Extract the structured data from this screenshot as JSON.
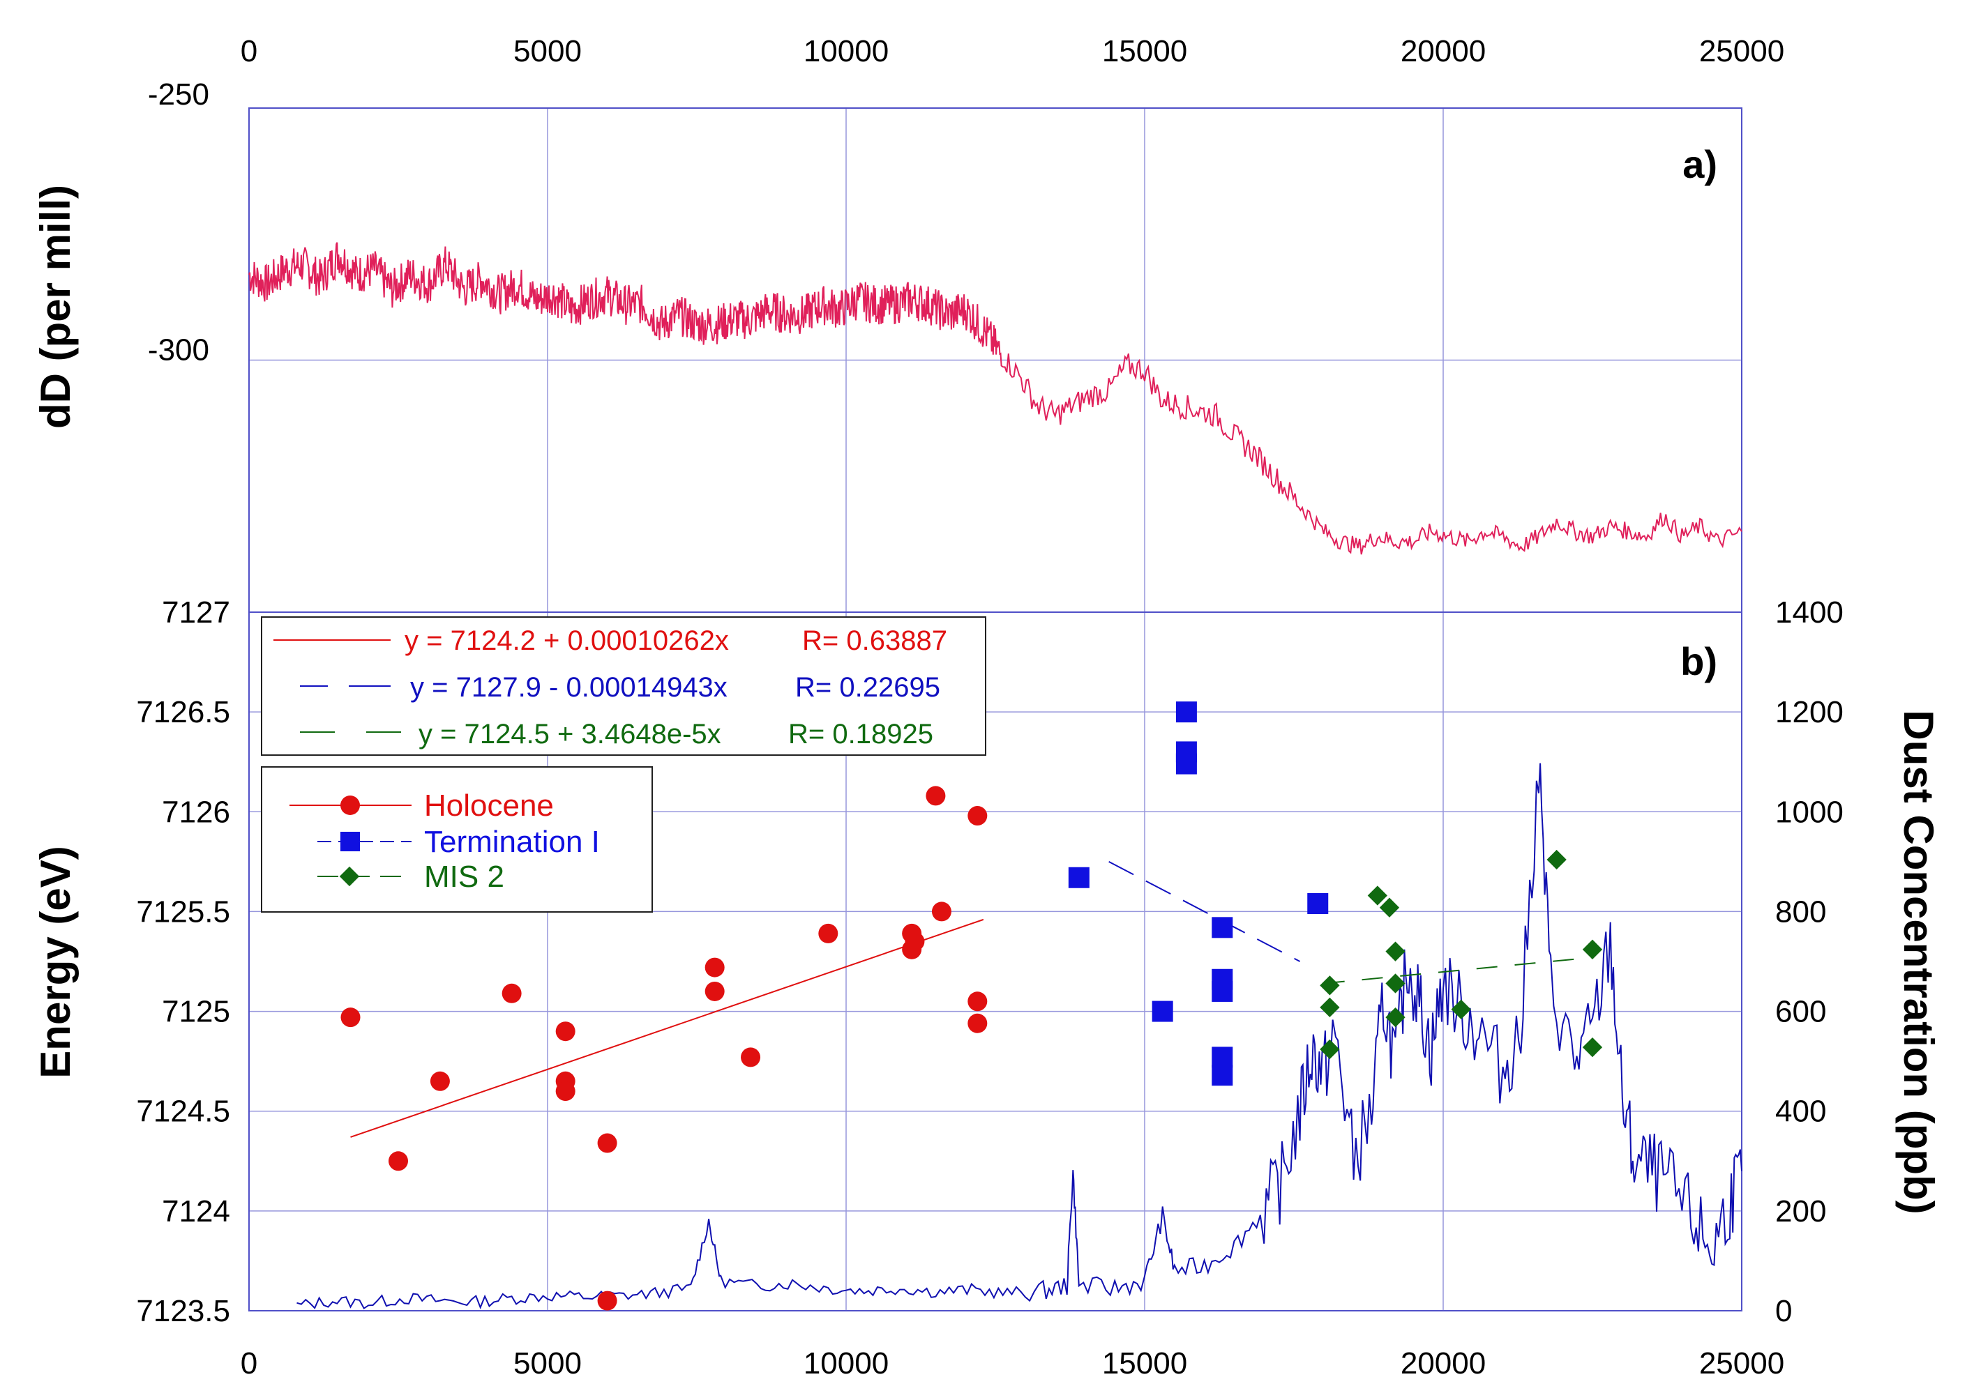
{
  "chart_data": [
    {
      "panel_label": "a)",
      "type": "line",
      "ylabel": "dD (per mill)",
      "xlim": [
        0,
        25000
      ],
      "ylim": [
        -350,
        -250
      ],
      "x_ticks": [
        "0",
        "5000",
        "10000",
        "15000",
        "20000",
        "25000"
      ],
      "y_ticks": [
        "-250",
        "-300"
      ],
      "series": [
        {
          "name": "dD",
          "color": "#e0205a",
          "points": [
            [
              0,
              -283
            ],
            [
              300,
              -285
            ],
            [
              600,
              -282
            ],
            [
              900,
              -281
            ],
            [
              1200,
              -284
            ],
            [
              1500,
              -279
            ],
            [
              1800,
              -283
            ],
            [
              2100,
              -282
            ],
            [
              2400,
              -286
            ],
            [
              2700,
              -283
            ],
            [
              3000,
              -285
            ],
            [
              3300,
              -281
            ],
            [
              3600,
              -286
            ],
            [
              3900,
              -284
            ],
            [
              4200,
              -287
            ],
            [
              4500,
              -285
            ],
            [
              4800,
              -288
            ],
            [
              5100,
              -287
            ],
            [
              5400,
              -290
            ],
            [
              5700,
              -288
            ],
            [
              6000,
              -287
            ],
            [
              6300,
              -289
            ],
            [
              6600,
              -289
            ],
            [
              6900,
              -293
            ],
            [
              7200,
              -291
            ],
            [
              7500,
              -293
            ],
            [
              7800,
              -293
            ],
            [
              8100,
              -292
            ],
            [
              8400,
              -292
            ],
            [
              8700,
              -290
            ],
            [
              9000,
              -291
            ],
            [
              9300,
              -291
            ],
            [
              9600,
              -289
            ],
            [
              9900,
              -290
            ],
            [
              10200,
              -288
            ],
            [
              10500,
              -289
            ],
            [
              10800,
              -289
            ],
            [
              11100,
              -288
            ],
            [
              11400,
              -289
            ],
            [
              11700,
              -291
            ],
            [
              12000,
              -290
            ],
            [
              12300,
              -294
            ],
            [
              12600,
              -299
            ],
            [
              12900,
              -303
            ],
            [
              13200,
              -309
            ],
            [
              13500,
              -311
            ],
            [
              13800,
              -309
            ],
            [
              14100,
              -307
            ],
            [
              14400,
              -306
            ],
            [
              14700,
              -301
            ],
            [
              15000,
              -302
            ],
            [
              15300,
              -308
            ],
            [
              15600,
              -309
            ],
            [
              15900,
              -310
            ],
            [
              16200,
              -311
            ],
            [
              16500,
              -315
            ],
            [
              16800,
              -318
            ],
            [
              17100,
              -322
            ],
            [
              17400,
              -326
            ],
            [
              17700,
              -330
            ],
            [
              18000,
              -334
            ],
            [
              18300,
              -336
            ],
            [
              18600,
              -337
            ],
            [
              18900,
              -335
            ],
            [
              19200,
              -336
            ],
            [
              19500,
              -336
            ],
            [
              19800,
              -334
            ],
            [
              20100,
              -335
            ],
            [
              20400,
              -336
            ],
            [
              20700,
              -334
            ],
            [
              21000,
              -335
            ],
            [
              21300,
              -337
            ],
            [
              21600,
              -335
            ],
            [
              21900,
              -332
            ],
            [
              22200,
              -334
            ],
            [
              22500,
              -335
            ],
            [
              22800,
              -333
            ],
            [
              23100,
              -334
            ],
            [
              23400,
              -335
            ],
            [
              23700,
              -331
            ],
            [
              24000,
              -335
            ],
            [
              24300,
              -333
            ],
            [
              24600,
              -336
            ],
            [
              25000,
              -334
            ]
          ]
        }
      ]
    },
    {
      "panel_label": "b)",
      "type": "scatter",
      "ylabel": "Energy (eV)",
      "y2label": "Dust Concentration (ppb)",
      "xlim": [
        0,
        25000
      ],
      "ylim": [
        7123.5,
        7127
      ],
      "y2lim": [
        0,
        1400
      ],
      "x_ticks": [
        "0",
        "5000",
        "10000",
        "15000",
        "20000",
        "25000"
      ],
      "y_ticks": [
        "7123.5",
        "7124",
        "7124.5",
        "7125",
        "7125.5",
        "7126",
        "7126.5",
        "7127"
      ],
      "y2_ticks": [
        "0",
        "200",
        "400",
        "600",
        "800",
        "1000",
        "1200",
        "1400"
      ],
      "fit_lines": [
        {
          "label": "y = 7124.2 + 0.00010262x",
          "r": "R= 0.63887",
          "color": "#e01010",
          "x": [
            1700,
            12300
          ],
          "y": [
            7124.37,
            7125.46
          ]
        },
        {
          "label": "y = 7127.9 - 0.00014943x",
          "r": "R= 0.22695",
          "color": "#1010c0",
          "x": [
            14400,
            17600
          ],
          "y": [
            7125.75,
            7125.25
          ]
        },
        {
          "label": "y = 7124.5 + 3.4648e-5x",
          "r": "R= 0.18925",
          "color": "#106a10",
          "x": [
            18000,
            22500
          ],
          "y": [
            7125.14,
            7125.27
          ]
        }
      ],
      "series": [
        {
          "name": "Holocene",
          "color": "#e01010",
          "marker": "circle",
          "x": [
            1700,
            2500,
            3200,
            4400,
            5300,
            5300,
            5300,
            6000,
            6000,
            7800,
            7800,
            8400,
            9700,
            11100,
            11150,
            11100,
            11500,
            11600,
            12200,
            12200,
            12200
          ],
          "y": [
            7124.97,
            7124.25,
            7124.65,
            7125.09,
            7124.9,
            7124.65,
            7124.6,
            7124.34,
            7123.55,
            7125.22,
            7125.1,
            7124.77,
            7125.39,
            7125.39,
            7125.35,
            7125.31,
            7126.08,
            7125.5,
            7125.05,
            7124.94,
            7125.98
          ]
        },
        {
          "name": "Termination I",
          "color": "#1010e0",
          "marker": "square",
          "x": [
            13900,
            15300,
            15700,
            15700,
            15700,
            16300,
            16300,
            16300,
            16300,
            16300,
            17900
          ],
          "y": [
            7125.67,
            7125.0,
            7126.5,
            7126.3,
            7126.24,
            7125.42,
            7125.16,
            7125.1,
            7124.77,
            7124.68,
            7125.54
          ]
        },
        {
          "name": "MIS 2",
          "color": "#106a10",
          "marker": "diamond",
          "x": [
            18100,
            18100,
            18100,
            18900,
            19100,
            19200,
            19200,
            19200,
            20300,
            21900,
            22500,
            22500
          ],
          "y": [
            7125.13,
            7125.02,
            7124.81,
            7125.58,
            7125.52,
            7125.3,
            7125.14,
            7124.97,
            7125.01,
            7125.76,
            7125.31,
            7124.82
          ]
        },
        {
          "name": "Dust Concentration",
          "color": "#1010b0",
          "axis": "y2",
          "points": [
            [
              800,
              10
            ],
            [
              1400,
              20
            ],
            [
              2000,
              15
            ],
            [
              2600,
              25
            ],
            [
              3200,
              20
            ],
            [
              3800,
              18
            ],
            [
              4400,
              25
            ],
            [
              5000,
              30
            ],
            [
              5600,
              28
            ],
            [
              6200,
              30
            ],
            [
              6800,
              35
            ],
            [
              7400,
              45
            ],
            [
              7700,
              180
            ],
            [
              7900,
              60
            ],
            [
              8500,
              50
            ],
            [
              9100,
              55
            ],
            [
              9700,
              45
            ],
            [
              10300,
              40
            ],
            [
              10900,
              45
            ],
            [
              11500,
              38
            ],
            [
              12100,
              42
            ],
            [
              12700,
              35
            ],
            [
              13300,
              40
            ],
            [
              13700,
              50
            ],
            [
              13800,
              280
            ],
            [
              13900,
              50
            ],
            [
              14500,
              45
            ],
            [
              15000,
              60
            ],
            [
              15300,
              190
            ],
            [
              15500,
              80
            ],
            [
              16000,
              90
            ],
            [
              16500,
              130
            ],
            [
              17000,
              200
            ],
            [
              17300,
              260
            ],
            [
              17600,
              400
            ],
            [
              17800,
              520
            ],
            [
              18000,
              480
            ],
            [
              18200,
              550
            ],
            [
              18500,
              300
            ],
            [
              18800,
              400
            ],
            [
              19000,
              620
            ],
            [
              19200,
              500
            ],
            [
              19400,
              700
            ],
            [
              19600,
              620
            ],
            [
              19800,
              520
            ],
            [
              20000,
              660
            ],
            [
              20300,
              600
            ],
            [
              20600,
              560
            ],
            [
              21000,
              480
            ],
            [
              21300,
              560
            ],
            [
              21600,
              1090
            ],
            [
              21800,
              650
            ],
            [
              22200,
              500
            ],
            [
              22500,
              560
            ],
            [
              22800,
              740
            ],
            [
              23000,
              420
            ],
            [
              23200,
              300
            ],
            [
              23500,
              280
            ],
            [
              23800,
              250
            ],
            [
              24200,
              180
            ],
            [
              24500,
              120
            ],
            [
              24800,
              220
            ],
            [
              25000,
              280
            ]
          ]
        }
      ],
      "legend": {
        "position": "top-left",
        "entries": [
          "Holocene",
          "Termination I",
          "MIS 2"
        ]
      }
    }
  ]
}
